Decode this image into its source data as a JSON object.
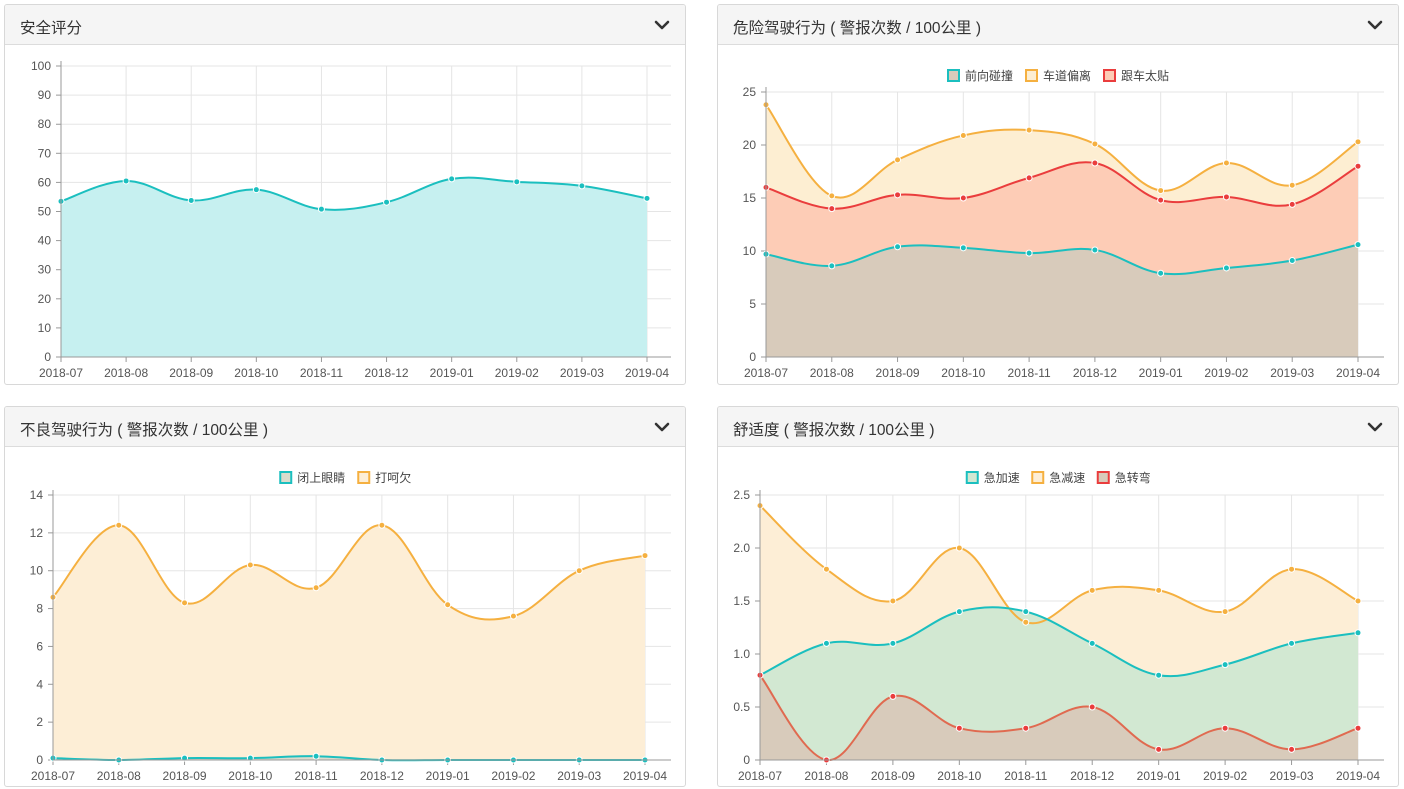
{
  "icons": {
    "collapse": "chevron-down-icon"
  },
  "colors": {
    "teal": "#1bbfbf",
    "orange": "#f5b040",
    "red": "#ea3d3d",
    "redline": "#e06a50",
    "grid": "#e5e5e5",
    "axis": "#999999",
    "tick_text": "#555555"
  },
  "panels": [
    {
      "title": "安全评分",
      "chart_data": {
        "type": "area",
        "categories": [
          "2018-07",
          "2018-08",
          "2018-09",
          "2018-10",
          "2018-11",
          "2018-12",
          "2019-01",
          "2019-02",
          "2019-03",
          "2019-04"
        ],
        "ylim": [
          0,
          100
        ],
        "yticks": [
          "0",
          "10",
          "20",
          "30",
          "40",
          "50",
          "60",
          "70",
          "80",
          "90",
          "100"
        ],
        "legend": "none",
        "grid": true,
        "series": [
          {
            "values": [
              53.5,
              60.5,
              53.8,
              57.5,
              50.8,
              53.2,
              61.2,
              60.2,
              58.8,
              54.5
            ],
            "color": "#1bbfbf",
            "fill": "#c6f0f0"
          }
        ]
      }
    },
    {
      "title": "危险驾驶行为 ( 警报次数 / 100公里 )",
      "chart_data": {
        "type": "area",
        "categories": [
          "2018-07",
          "2018-08",
          "2018-09",
          "2018-10",
          "2018-11",
          "2018-12",
          "2019-01",
          "2019-02",
          "2019-03",
          "2019-04"
        ],
        "ylim": [
          0,
          25
        ],
        "yticks": [
          "0",
          "5",
          "10",
          "15",
          "20",
          "25"
        ],
        "legend": "top-center",
        "grid": true,
        "series": [
          {
            "name": "前向碰撞",
            "values": [
              9.7,
              8.6,
              10.4,
              10.3,
              9.8,
              10.1,
              7.9,
              8.4,
              9.1,
              10.6
            ],
            "color": "#1bbfbf",
            "fill": "#d8cbbb"
          },
          {
            "name": "车道偏离",
            "values": [
              23.8,
              15.2,
              18.6,
              20.9,
              21.4,
              20.1,
              15.7,
              18.3,
              16.2,
              20.3
            ],
            "color": "#f5b040",
            "fill": "#fdeed2"
          },
          {
            "name": "跟车太贴",
            "values": [
              16.0,
              14.0,
              15.3,
              15.0,
              16.9,
              18.3,
              14.8,
              15.1,
              14.4,
              18.0
            ],
            "color": "#ea3d3d",
            "fill": "#fdccb6"
          }
        ]
      }
    },
    {
      "title": "不良驾驶行为 ( 警报次数 / 100公里 )",
      "chart_data": {
        "type": "area",
        "categories": [
          "2018-07",
          "2018-08",
          "2018-09",
          "2018-10",
          "2018-11",
          "2018-12",
          "2019-01",
          "2019-02",
          "2019-03",
          "2019-04"
        ],
        "ylim": [
          0,
          14
        ],
        "yticks": [
          "0",
          "2",
          "4",
          "6",
          "8",
          "10",
          "12",
          "14"
        ],
        "legend": "top-center",
        "grid": true,
        "series": [
          {
            "name": "闭上眼睛",
            "values": [
              0.1,
              0.0,
              0.1,
              0.1,
              0.2,
              0.0,
              0.0,
              0.0,
              0.0,
              0.0
            ],
            "color": "#1bbfbf",
            "fill": "#dcdccc"
          },
          {
            "name": "打呵欠",
            "values": [
              8.6,
              12.4,
              8.3,
              10.3,
              9.1,
              12.4,
              8.2,
              7.6,
              10.0,
              10.8
            ],
            "color": "#f5b040",
            "fill": "#fdeed6"
          }
        ]
      }
    },
    {
      "title": "舒适度 ( 警报次数 / 100公里 )",
      "chart_data": {
        "type": "area",
        "categories": [
          "2018-07",
          "2018-08",
          "2018-09",
          "2018-10",
          "2018-11",
          "2018-12",
          "2019-01",
          "2019-02",
          "2019-03",
          "2019-04"
        ],
        "ylim": [
          0,
          2.5
        ],
        "yticks": [
          "0",
          "0.5",
          "1.0",
          "1.5",
          "2.0",
          "2.5"
        ],
        "legend": "top-center",
        "grid": true,
        "series": [
          {
            "name": "急加速",
            "values": [
              0.8,
              1.1,
              1.1,
              1.4,
              1.4,
              1.1,
              0.8,
              0.9,
              1.1,
              1.2
            ],
            "color": "#1bbfbf",
            "fill": "#d2e8d2"
          },
          {
            "name": "急减速",
            "values": [
              2.4,
              1.8,
              1.5,
              2.0,
              1.3,
              1.6,
              1.6,
              1.4,
              1.8,
              1.5
            ],
            "color": "#f5b040",
            "fill": "#fdeed6"
          },
          {
            "name": "急转弯",
            "values": [
              0.8,
              0.0,
              0.6,
              0.3,
              0.3,
              0.5,
              0.1,
              0.3,
              0.1,
              0.3
            ],
            "color": "#ea3d3d",
            "linecolor": "#e06a50",
            "fill": "#d8cbbb"
          }
        ]
      }
    }
  ]
}
